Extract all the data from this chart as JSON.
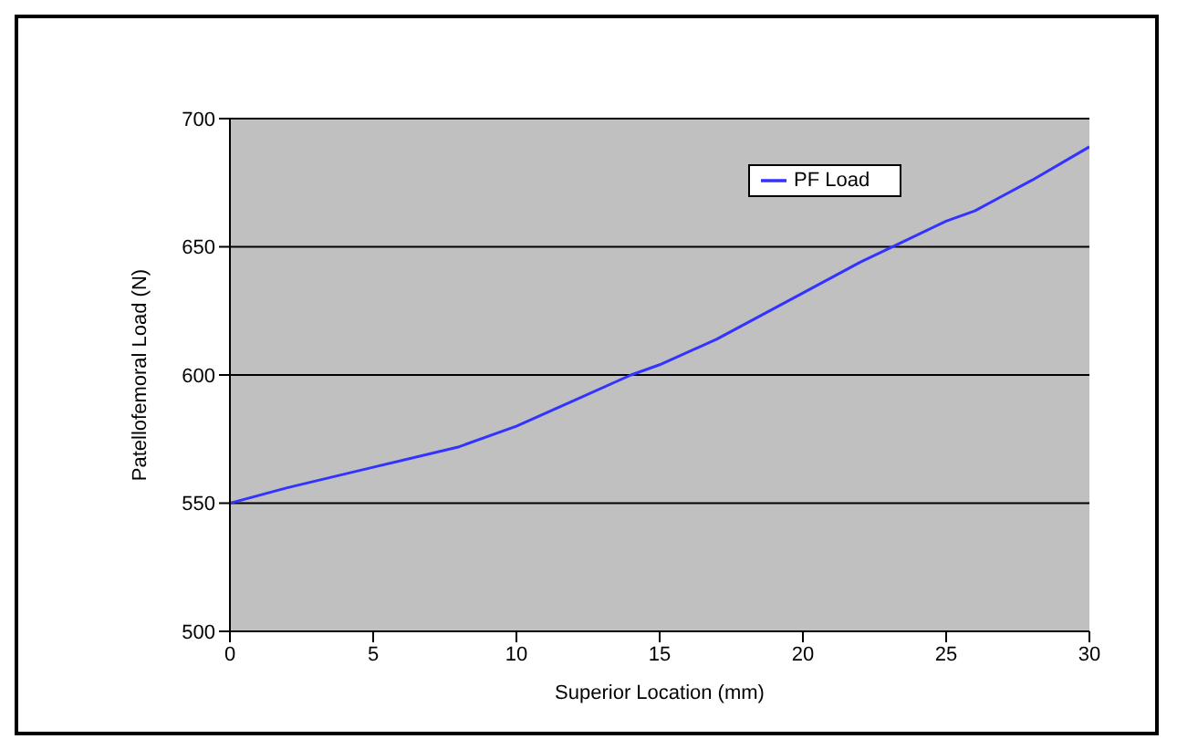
{
  "chart_data": {
    "type": "line",
    "xlabel": "Superior Location (mm)",
    "ylabel": "Patellofemoral Load (N)",
    "x": [
      0,
      2,
      5,
      8,
      10,
      12,
      14,
      15,
      17,
      20,
      22,
      25,
      26,
      27,
      28,
      30
    ],
    "series": [
      {
        "name": "PF Load",
        "color": "#3333ff",
        "values": [
          550,
          556,
          564,
          572,
          580,
          590,
          600,
          604,
          614,
          632,
          644,
          660,
          664,
          670,
          676,
          689
        ]
      }
    ],
    "xlim": [
      0,
      30
    ],
    "xticks": [
      0,
      5,
      10,
      15,
      20,
      25,
      30
    ],
    "ylim": [
      500,
      700
    ],
    "yticks": [
      500,
      550,
      600,
      650,
      700
    ],
    "grid": "y",
    "legend": "top right",
    "marker": "none",
    "line_style": "solid"
  }
}
